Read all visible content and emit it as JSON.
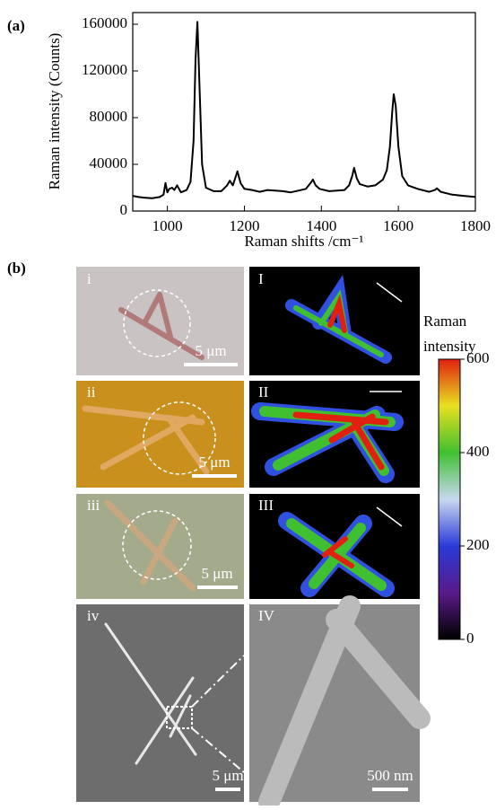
{
  "chart_data": [
    {
      "type": "line",
      "panel": "(a)",
      "x_label": "Raman shifts /cm⁻¹",
      "y_label": "Raman intensity (Counts)",
      "x": [
        910,
        925,
        940,
        960,
        980,
        990,
        995,
        1000,
        1005,
        1012,
        1018,
        1025,
        1035,
        1050,
        1060,
        1068,
        1073,
        1078,
        1083,
        1090,
        1100,
        1120,
        1140,
        1155,
        1162,
        1170,
        1176,
        1182,
        1190,
        1200,
        1220,
        1240,
        1260,
        1280,
        1300,
        1320,
        1340,
        1360,
        1372,
        1378,
        1385,
        1395,
        1420,
        1440,
        1460,
        1472,
        1480,
        1485,
        1492,
        1500,
        1520,
        1540,
        1560,
        1570,
        1578,
        1584,
        1588,
        1593,
        1600,
        1610,
        1625,
        1650,
        1680,
        1695,
        1700,
        1710,
        1740,
        1770,
        1800
      ],
      "series": [
        {
          "color": "#000000",
          "values": [
            13000,
            12000,
            11500,
            11000,
            12000,
            14000,
            24000,
            16000,
            19000,
            20000,
            18000,
            22000,
            16000,
            18000,
            25000,
            60000,
            130000,
            162000,
            110000,
            40000,
            20000,
            17000,
            17000,
            22000,
            26000,
            22000,
            28000,
            34000,
            24000,
            19000,
            18000,
            16500,
            18000,
            17500,
            17000,
            16000,
            17500,
            19000,
            24000,
            27000,
            22000,
            19000,
            17000,
            17500,
            18000,
            22000,
            30000,
            37000,
            28000,
            23000,
            21000,
            22000,
            27000,
            35000,
            55000,
            85000,
            100000,
            90000,
            55000,
            30000,
            22000,
            19000,
            16500,
            18000,
            19500,
            16500,
            14000,
            13000,
            12000
          ]
        }
      ],
      "xlim": [
        910,
        1800
      ],
      "ylim": [
        0,
        170000
      ],
      "xticks": [
        1000,
        1200,
        1400,
        1600,
        1800
      ],
      "yticks": [
        0,
        40000,
        80000,
        120000,
        160000
      ]
    },
    {
      "type": "colorbar",
      "title": "Raman intensity",
      "ylim": [
        0,
        600
      ],
      "yticks": [
        0,
        200,
        400,
        600
      ],
      "colors": [
        "#000000",
        "#5a1a8a",
        "#2a3ad8",
        "#c8d8f0",
        "#40c030",
        "#e8e020",
        "#e02010"
      ]
    }
  ],
  "figure": {
    "panel": "(b)",
    "optical_labels": [
      "i",
      "ii",
      "iii",
      "iv"
    ],
    "map_labels": [
      "I",
      "II",
      "III",
      "IV"
    ],
    "scale_bars": [
      "5 μm",
      "5 μm",
      "5 μm",
      "5 μm",
      "500 nm"
    ]
  }
}
